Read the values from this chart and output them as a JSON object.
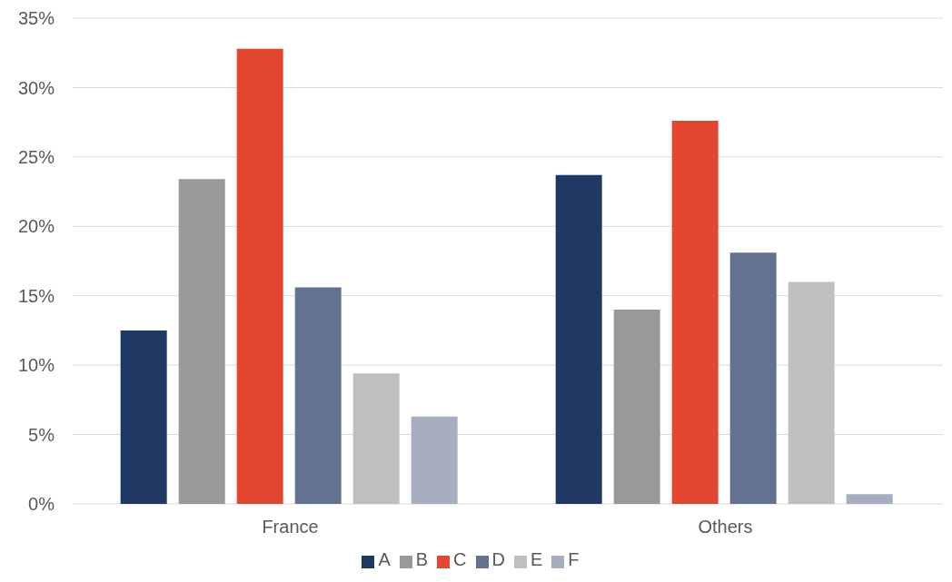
{
  "chart_data": {
    "type": "bar",
    "categories": [
      "France",
      "Others"
    ],
    "series": [
      {
        "name": "A",
        "color": "#203864",
        "values": [
          12.5,
          23.7
        ]
      },
      {
        "name": "B",
        "color": "#999999",
        "values": [
          23.4,
          14.0
        ]
      },
      {
        "name": "C",
        "color": "#e2462f",
        "values": [
          32.8,
          27.6
        ]
      },
      {
        "name": "D",
        "color": "#637290",
        "values": [
          15.6,
          18.1
        ]
      },
      {
        "name": "E",
        "color": "#bfbfbf",
        "values": [
          9.4,
          16.0
        ]
      },
      {
        "name": "F",
        "color": "#a7aec0",
        "values": [
          6.3,
          0.7
        ]
      }
    ],
    "ylim": [
      0,
      35
    ],
    "yticks": [
      {
        "value": 0,
        "label": "0%"
      },
      {
        "value": 5,
        "label": "5%"
      },
      {
        "value": 10,
        "label": "10%"
      },
      {
        "value": 15,
        "label": "15%"
      },
      {
        "value": 20,
        "label": "20%"
      },
      {
        "value": 25,
        "label": "25%"
      },
      {
        "value": 30,
        "label": "30%"
      },
      {
        "value": 35,
        "label": "35%"
      }
    ],
    "grid": "y",
    "legend": "bottom"
  }
}
